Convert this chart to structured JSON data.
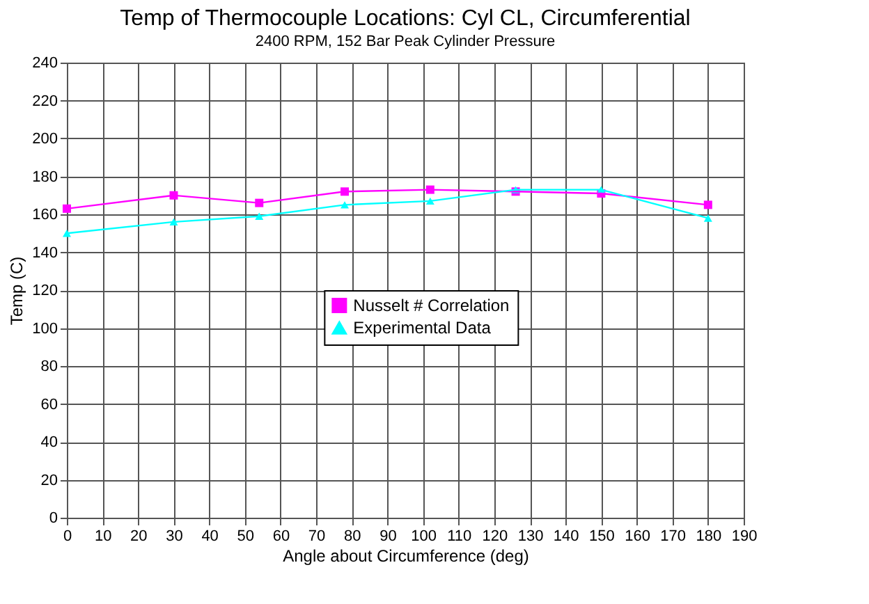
{
  "chart_data": {
    "type": "line",
    "title": "Temp of Thermocouple Locations: Cyl CL, Circumferential",
    "subtitle": "2400 RPM, 152 Bar Peak Cylinder Pressure",
    "xlabel": "Angle about Circumference (deg)",
    "ylabel": "Temp (C)",
    "x": [
      0,
      30,
      54,
      78,
      102,
      126,
      150,
      180
    ],
    "series": [
      {
        "name": "Nusselt # Correlation",
        "color": "#ff00ff",
        "marker": "square",
        "values": [
          163,
          170,
          166,
          172,
          173,
          172,
          171,
          165
        ]
      },
      {
        "name": "Experimental Data",
        "color": "#00ffff",
        "marker": "triangle",
        "values": [
          150,
          156,
          159,
          165,
          167,
          173,
          173,
          158
        ]
      }
    ],
    "xlim": [
      0,
      190
    ],
    "xticks": [
      0,
      10,
      20,
      30,
      40,
      50,
      60,
      70,
      80,
      90,
      100,
      110,
      120,
      130,
      140,
      150,
      160,
      170,
      180,
      190
    ],
    "ylim": [
      0,
      240
    ],
    "yticks": [
      0,
      20,
      40,
      60,
      80,
      100,
      120,
      140,
      160,
      180,
      200,
      220,
      240
    ],
    "grid": true,
    "legend": "center",
    "line_style": "solid"
  }
}
